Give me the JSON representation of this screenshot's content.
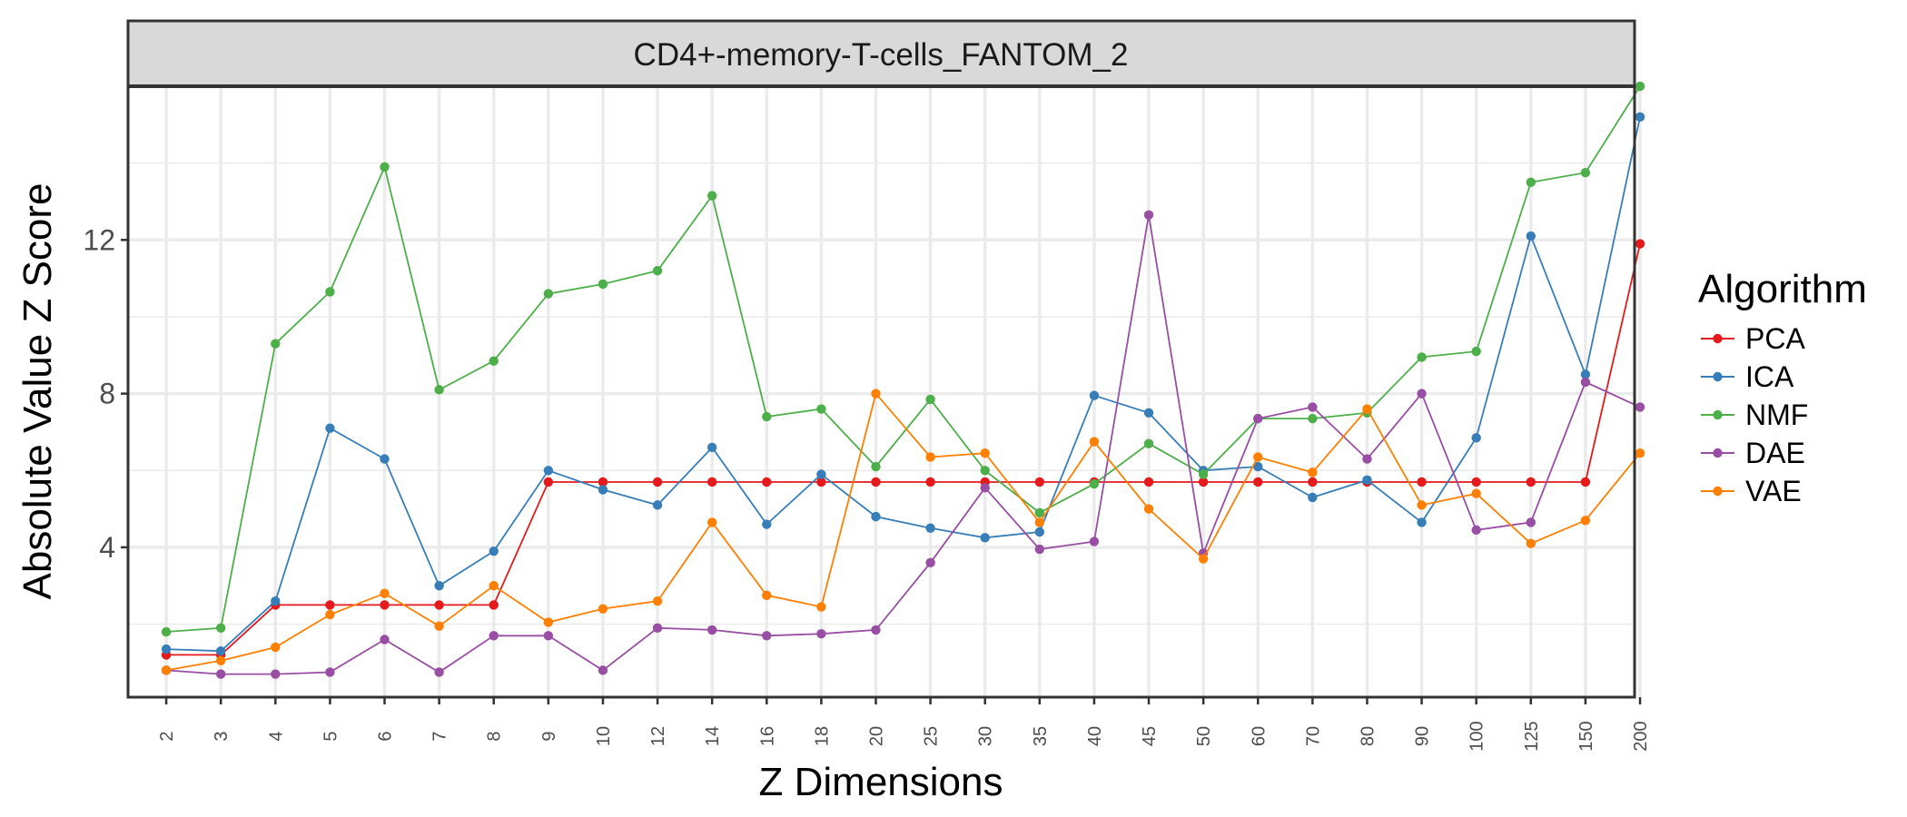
{
  "chart_data": {
    "type": "line",
    "facet_title": "CD4+-memory-T-cells_FANTOM_2",
    "xlabel": "Z Dimensions",
    "ylabel": "Absolute Value Z Score",
    "categories": [
      "2",
      "3",
      "4",
      "5",
      "6",
      "7",
      "8",
      "9",
      "10",
      "12",
      "14",
      "16",
      "18",
      "20",
      "25",
      "30",
      "35",
      "40",
      "45",
      "50",
      "60",
      "70",
      "80",
      "90",
      "100",
      "125",
      "150",
      "200"
    ],
    "y_ticks": [
      4,
      8,
      12
    ],
    "ylim": [
      0.1,
      16.0
    ],
    "grid": true,
    "legend": {
      "title": "Algorithm",
      "position": "right"
    },
    "series": [
      {
        "name": "PCA",
        "color": "#e41a1c",
        "values": [
          1.2,
          1.2,
          2.5,
          2.5,
          2.5,
          2.5,
          2.5,
          5.7,
          5.7,
          5.7,
          5.7,
          5.7,
          5.7,
          5.7,
          5.7,
          5.7,
          5.7,
          5.7,
          5.7,
          5.7,
          5.7,
          5.7,
          5.7,
          5.7,
          5.7,
          5.7,
          5.7,
          11.9
        ]
      },
      {
        "name": "ICA",
        "color": "#377eb8",
        "values": [
          1.35,
          1.3,
          2.6,
          7.1,
          6.3,
          3.0,
          3.9,
          6.0,
          5.5,
          5.1,
          6.6,
          4.6,
          5.9,
          4.8,
          4.5,
          4.25,
          4.4,
          7.95,
          7.5,
          6.0,
          6.1,
          5.3,
          5.75,
          4.65,
          6.85,
          12.1,
          8.5,
          15.2
        ]
      },
      {
        "name": "NMF",
        "color": "#4daf4a",
        "values": [
          1.8,
          1.9,
          9.3,
          10.65,
          13.9,
          8.1,
          8.85,
          10.6,
          10.85,
          11.2,
          13.15,
          7.4,
          7.6,
          6.1,
          7.85,
          6.0,
          4.9,
          5.65,
          6.7,
          5.9,
          7.35,
          7.35,
          7.5,
          8.95,
          9.1,
          13.5,
          13.75,
          16.0
        ]
      },
      {
        "name": "DAE",
        "color": "#984ea3",
        "values": [
          0.8,
          0.7,
          0.7,
          0.75,
          1.6,
          0.75,
          1.7,
          1.7,
          0.8,
          1.9,
          1.85,
          1.7,
          1.75,
          1.85,
          3.6,
          5.55,
          3.95,
          4.15,
          12.65,
          3.85,
          7.35,
          7.65,
          6.3,
          8.0,
          4.45,
          4.65,
          8.3,
          7.65
        ]
      },
      {
        "name": "VAE",
        "color": "#ff7f00",
        "values": [
          0.8,
          1.05,
          1.4,
          2.25,
          2.8,
          1.95,
          3.0,
          2.05,
          2.4,
          2.6,
          4.65,
          2.75,
          2.45,
          8.0,
          6.35,
          6.45,
          4.65,
          6.75,
          5.0,
          3.7,
          6.35,
          5.95,
          7.6,
          5.1,
          5.4,
          4.1,
          4.7,
          6.45
        ]
      }
    ]
  }
}
